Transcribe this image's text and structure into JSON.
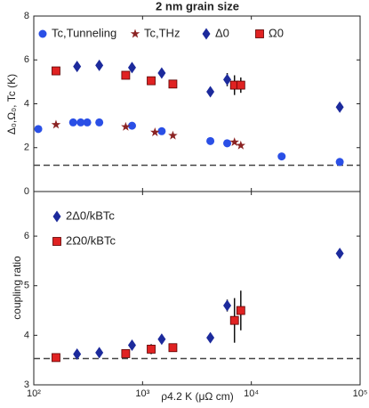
{
  "chart_data": [
    {
      "type": "scatter",
      "title": "2 nm grain size",
      "y_label": "Δ₀,Ω₀, Tc (K)",
      "xlim": [
        100,
        100000
      ],
      "log_x": true,
      "ylim": [
        0,
        8
      ],
      "yticks": [
        0,
        2,
        4,
        6,
        8
      ],
      "hlines": [
        1.2
      ],
      "series": [
        {
          "name": "Tc,Tunneling",
          "color": "#2a4fe6",
          "marker": "circle",
          "x": [
            110,
            230,
            270,
            310,
            400,
            800,
            1500,
            4200,
            6000,
            19000,
            65000
          ],
          "values": [
            2.85,
            3.15,
            3.15,
            3.15,
            3.15,
            3.0,
            2.75,
            2.3,
            2.2,
            1.6,
            1.35
          ]
        },
        {
          "name": "Tc,THz",
          "color": "#8b2323",
          "marker": "star",
          "x": [
            160,
            700,
            1300,
            1900,
            7000,
            8000
          ],
          "values": [
            3.05,
            2.95,
            2.7,
            2.55,
            2.25,
            2.1
          ]
        },
        {
          "name": "Δ0",
          "color": "#1c2a9c",
          "marker": "diamond",
          "x": [
            250,
            400,
            800,
            1500,
            4200,
            6000,
            65000
          ],
          "values": [
            5.7,
            5.75,
            5.65,
            5.4,
            4.55,
            5.1,
            3.85
          ],
          "errors": [
            null,
            null,
            null,
            null,
            null,
            0.3,
            null
          ]
        },
        {
          "name": "Ω0",
          "color": "#e02222",
          "marker": "square",
          "x": [
            160,
            700,
            1200,
            1900,
            7000,
            8000
          ],
          "values": [
            5.5,
            5.3,
            5.05,
            4.9,
            4.85,
            4.85
          ],
          "errors": [
            null,
            null,
            null,
            null,
            0.45,
            0.35
          ]
        }
      ]
    },
    {
      "type": "scatter",
      "x_label": "ρ4.2 K (μΩ cm)",
      "y_label": "coupling ratio",
      "xlim": [
        100,
        100000
      ],
      "log_x": true,
      "xticks": [
        {
          "value": 100,
          "label": "10²"
        },
        {
          "value": 1000,
          "label": "10³"
        },
        {
          "value": 10000,
          "label": "10⁴"
        },
        {
          "value": 100000,
          "label": "10⁵"
        }
      ],
      "ylim": [
        3,
        6.9
      ],
      "yticks": [
        3,
        4,
        5,
        6
      ],
      "hlines": [
        3.53
      ],
      "series": [
        {
          "name": "2Δ0/kBTc",
          "color": "#1c2a9c",
          "marker": "diamond",
          "x": [
            250,
            400,
            800,
            1500,
            4200,
            6000,
            65000
          ],
          "values": [
            3.62,
            3.65,
            3.8,
            3.92,
            3.95,
            4.6,
            5.65
          ],
          "errors": [
            null,
            null,
            null,
            null,
            null,
            0.12,
            null
          ]
        },
        {
          "name": "2Ω0/kBTc",
          "color": "#e02222",
          "marker": "square",
          "x": [
            160,
            700,
            1200,
            1900,
            7000,
            8000
          ],
          "values": [
            3.55,
            3.63,
            3.72,
            3.75,
            4.3,
            4.5
          ],
          "errors": [
            null,
            null,
            0.1,
            null,
            0.45,
            0.4
          ]
        }
      ]
    }
  ]
}
